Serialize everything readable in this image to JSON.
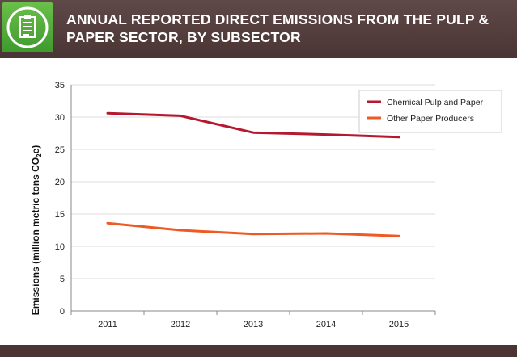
{
  "header": {
    "title": "ANNUAL REPORTED DIRECT EMISSIONS FROM THE PULP & PAPER SECTOR, BY SUBSECTOR",
    "icon": "clipboard-icon"
  },
  "colors": {
    "header_bg": "#4a3534",
    "icon_bg": "#4caf3a",
    "series_1": "#b5182f",
    "series_2": "#ef5a24"
  },
  "chart_data": {
    "type": "line",
    "title": "ANNUAL REPORTED DIRECT EMISSIONS FROM THE PULP & PAPER SECTOR, BY SUBSECTOR",
    "ylabel_main": "Emissions (million metric tons CO",
    "ylabel_sub": "2",
    "ylabel_end": "e)",
    "x": [
      "2011",
      "2012",
      "2013",
      "2014",
      "2015"
    ],
    "ylim": [
      0,
      35
    ],
    "yticks": [
      "0",
      "5",
      "10",
      "15",
      "20",
      "25",
      "30",
      "35"
    ],
    "grid": true,
    "legend_position": "top-right",
    "series": [
      {
        "name": "Chemical Pulp and Paper",
        "values": [
          30.6,
          30.2,
          27.6,
          27.3,
          26.9
        ]
      },
      {
        "name": "Other Paper Producers",
        "values": [
          13.6,
          12.5,
          11.9,
          12.0,
          11.6
        ]
      }
    ]
  }
}
